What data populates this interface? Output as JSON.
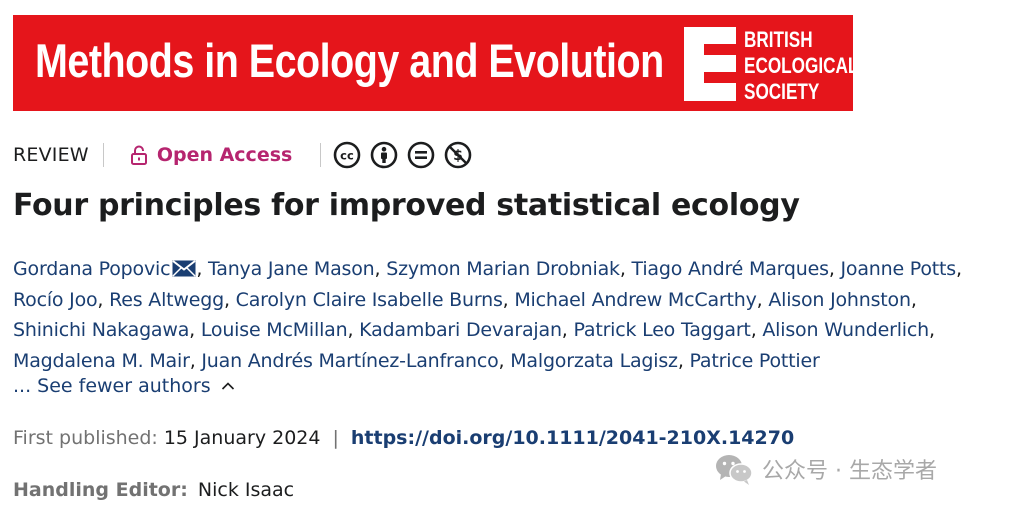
{
  "banner": {
    "journal_title": "Methods in Ecology and Evolution",
    "society_lines": [
      "BRITISH",
      "ECOLOGICAL",
      "SOCIETY"
    ],
    "background_color": "#e5151b"
  },
  "meta": {
    "article_type": "REVIEW",
    "open_access_label": "Open Access",
    "open_access_color": "#b6256f",
    "license_icons": [
      "cc-icon",
      "by-icon",
      "nd-icon",
      "nc-icon"
    ]
  },
  "title": "Four principles for improved statistical ecology",
  "authors": {
    "lines": [
      [
        "Gordana Popovic",
        "Tanya Jane Mason",
        "Szymon Marian Drobniak",
        "Tiago André Marques",
        "Joanne Potts"
      ],
      [
        "Rocío Joo",
        "Res Altwegg",
        "Carolyn Claire Isabelle Burns",
        "Michael Andrew McCarthy",
        "Alison Johnston"
      ],
      [
        "Shinichi Nakagawa",
        "Louise McMillan",
        "Kadambari Devarajan",
        "Patrick Leo Taggart",
        "Alison Wunderlich"
      ],
      [
        "Magdalena M. Mair",
        "Juan Andrés Martínez-Lanfranco",
        "Malgorzata Lagisz",
        "Patrice Pottier"
      ]
    ],
    "see_fewer_label": "... See fewer authors"
  },
  "publication": {
    "first_published_label": "First published:",
    "date": "15 January 2024",
    "separator": "|",
    "doi": "https://doi.org/10.1111/2041-210X.14270"
  },
  "editor": {
    "label": "Handling Editor:",
    "name": "Nick Isaac"
  },
  "watermark": {
    "text": "公众号 · 生态学者"
  },
  "colors": {
    "link": "#1a3e72",
    "muted": "#727272"
  }
}
